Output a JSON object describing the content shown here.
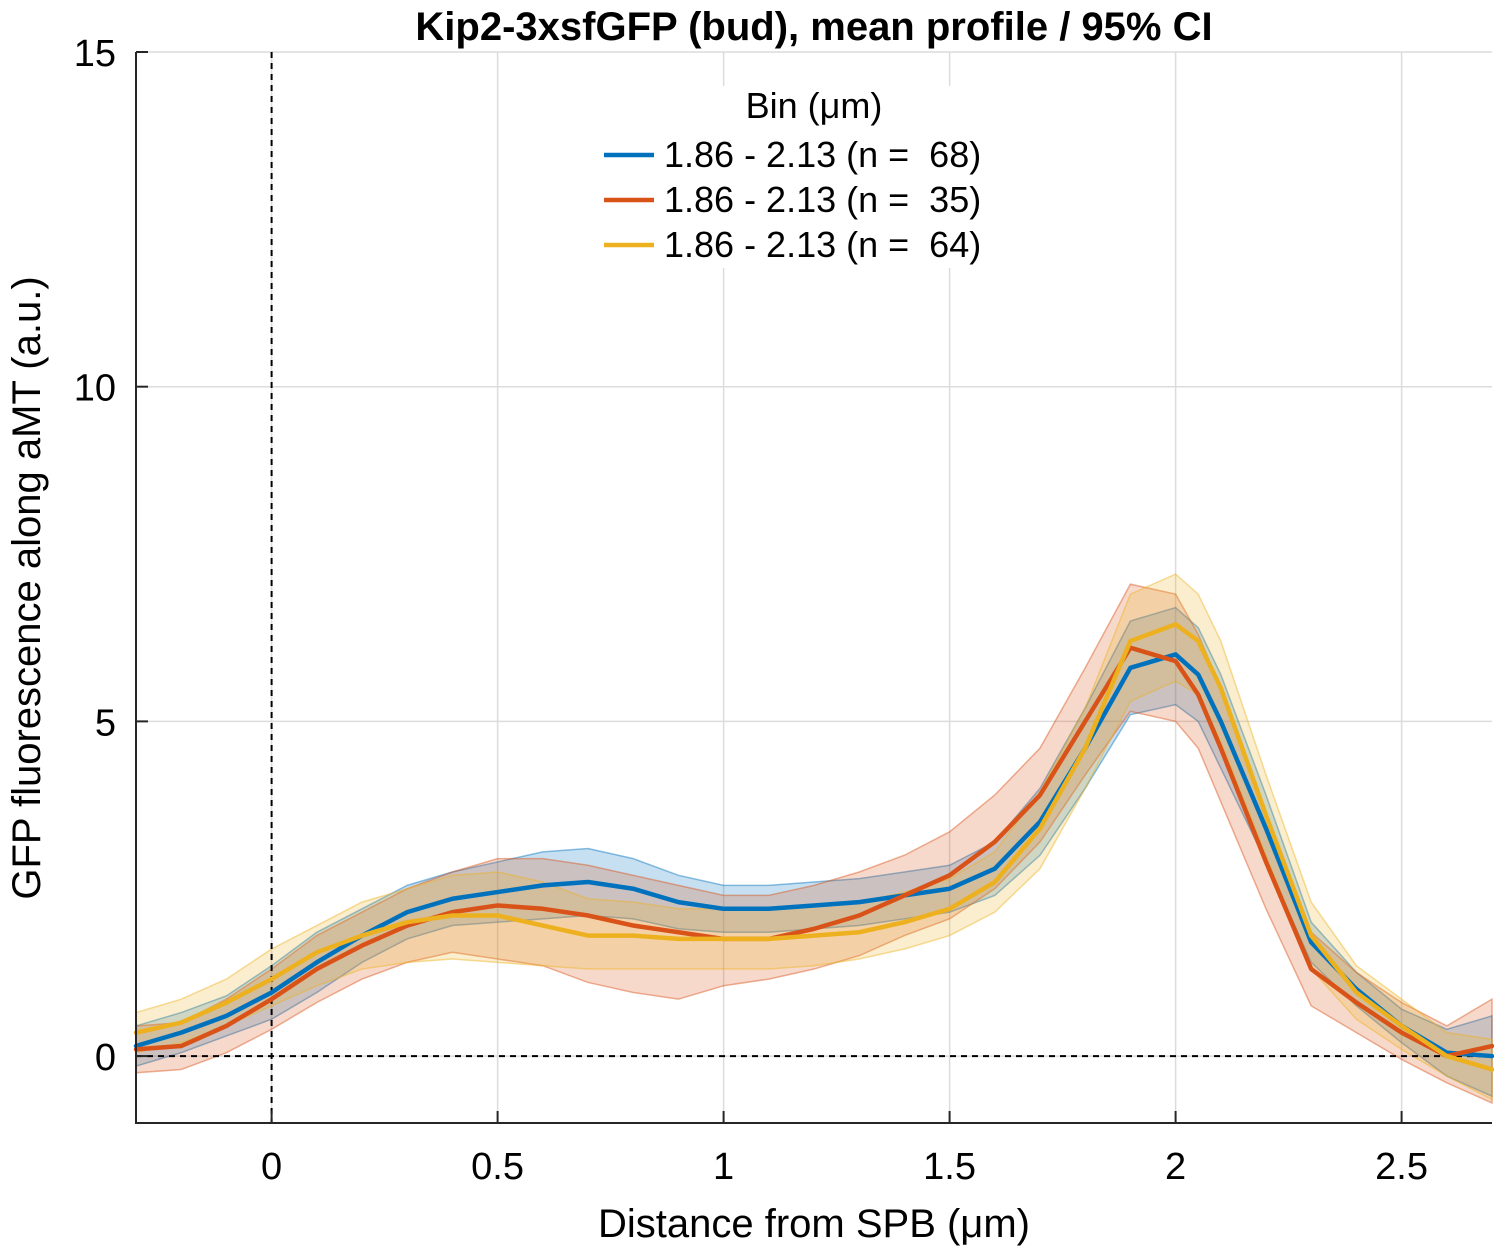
{
  "chart_data": {
    "type": "line",
    "title": "Kip2-3xsfGFP (bud), mean profile / 95% CI",
    "xlabel": "Distance from SPB (μm)",
    "ylabel": "GFP fluorescence along aMT (a.u.)",
    "xlim": [
      -0.3,
      2.7
    ],
    "ylim": [
      -1,
      15
    ],
    "xticks": [
      0,
      0.5,
      1,
      1.5,
      2,
      2.5
    ],
    "xtick_labels": [
      "0",
      "0.5",
      "1",
      "1.5",
      "2",
      "2.5"
    ],
    "yticks": [
      0,
      5,
      10,
      15
    ],
    "ytick_labels": [
      "0",
      "5",
      "10",
      "15"
    ],
    "grid": true,
    "reference_lines": {
      "x": 0,
      "y": 0,
      "style": "dashed"
    },
    "legend": {
      "title": "Bin (μm)",
      "placement": "top-center",
      "entries": [
        "1.86 - 2.13 (n =  68)",
        "1.86 - 2.13 (n =  35)",
        "1.86 - 2.13 (n =  64)"
      ]
    },
    "x": [
      -0.3,
      -0.2,
      -0.1,
      0,
      0.1,
      0.2,
      0.3,
      0.4,
      0.5,
      0.6,
      0.7,
      0.8,
      0.9,
      1.0,
      1.1,
      1.2,
      1.3,
      1.4,
      1.5,
      1.6,
      1.7,
      1.8,
      1.9,
      2.0,
      2.05,
      2.1,
      2.2,
      2.3,
      2.4,
      2.5,
      2.6,
      2.7
    ],
    "series": [
      {
        "name": "1.86 - 2.13 (n =  68)",
        "color": "#0072BD",
        "values": [
          0.15,
          0.35,
          0.6,
          0.95,
          1.4,
          1.8,
          2.15,
          2.35,
          2.45,
          2.55,
          2.6,
          2.5,
          2.3,
          2.2,
          2.2,
          2.25,
          2.3,
          2.4,
          2.5,
          2.8,
          3.5,
          4.6,
          5.8,
          6.0,
          5.7,
          5.0,
          3.4,
          1.7,
          1.0,
          0.45,
          0.05,
          0.0
        ],
        "ci_lower": [
          -0.15,
          0.05,
          0.3,
          0.55,
          0.95,
          1.4,
          1.75,
          1.95,
          2.0,
          2.05,
          2.1,
          2.05,
          1.9,
          1.85,
          1.85,
          1.9,
          1.95,
          2.05,
          2.15,
          2.4,
          3.0,
          4.0,
          5.1,
          5.25,
          5.0,
          4.3,
          2.9,
          1.4,
          0.75,
          0.2,
          -0.3,
          -0.6
        ],
        "ci_upper": [
          0.45,
          0.65,
          0.9,
          1.35,
          1.85,
          2.2,
          2.55,
          2.75,
          2.9,
          3.05,
          3.1,
          2.95,
          2.7,
          2.55,
          2.55,
          2.6,
          2.65,
          2.75,
          2.85,
          3.2,
          4.0,
          5.2,
          6.5,
          6.7,
          6.4,
          5.7,
          3.9,
          2.0,
          1.25,
          0.7,
          0.4,
          0.6
        ]
      },
      {
        "name": "1.86 - 2.13 (n =  35)",
        "color": "#D95319",
        "values": [
          0.1,
          0.15,
          0.45,
          0.85,
          1.3,
          1.65,
          1.95,
          2.15,
          2.25,
          2.2,
          2.1,
          1.95,
          1.85,
          1.75,
          1.75,
          1.9,
          2.1,
          2.4,
          2.7,
          3.2,
          3.9,
          5.0,
          6.1,
          5.9,
          5.4,
          4.6,
          2.9,
          1.3,
          0.8,
          0.35,
          0.0,
          0.15
        ],
        "ci_lower": [
          -0.25,
          -0.2,
          0.05,
          0.4,
          0.8,
          1.15,
          1.4,
          1.55,
          1.45,
          1.35,
          1.1,
          0.95,
          0.85,
          1.05,
          1.15,
          1.3,
          1.5,
          1.8,
          2.05,
          2.5,
          3.2,
          4.2,
          5.15,
          5.0,
          4.6,
          3.8,
          2.2,
          0.75,
          0.35,
          -0.05,
          -0.4,
          -0.7
        ],
        "ci_upper": [
          0.45,
          0.5,
          0.85,
          1.3,
          1.8,
          2.15,
          2.5,
          2.75,
          2.95,
          2.95,
          2.85,
          2.7,
          2.55,
          2.4,
          2.4,
          2.55,
          2.75,
          3.0,
          3.35,
          3.9,
          4.6,
          5.8,
          7.05,
          6.9,
          6.3,
          5.5,
          3.6,
          1.85,
          1.25,
          0.8,
          0.45,
          0.85
        ]
      },
      {
        "name": "1.86 - 2.13 (n =  64)",
        "color": "#EDB120",
        "values": [
          0.35,
          0.5,
          0.8,
          1.15,
          1.55,
          1.8,
          2.0,
          2.1,
          2.1,
          1.95,
          1.8,
          1.8,
          1.75,
          1.75,
          1.75,
          1.8,
          1.85,
          2.0,
          2.2,
          2.6,
          3.4,
          4.6,
          6.2,
          6.45,
          6.2,
          5.5,
          3.6,
          1.8,
          0.95,
          0.45,
          0.0,
          -0.2
        ],
        "ci_lower": [
          0.05,
          0.2,
          0.45,
          0.75,
          1.05,
          1.3,
          1.4,
          1.45,
          1.4,
          1.35,
          1.3,
          1.3,
          1.3,
          1.3,
          1.3,
          1.35,
          1.45,
          1.6,
          1.8,
          2.15,
          2.8,
          4.0,
          5.3,
          5.6,
          5.4,
          4.7,
          3.0,
          1.3,
          0.55,
          0.1,
          -0.3,
          -0.65
        ],
        "ci_upper": [
          0.65,
          0.85,
          1.15,
          1.6,
          1.95,
          2.3,
          2.5,
          2.7,
          2.75,
          2.6,
          2.35,
          2.3,
          2.2,
          2.2,
          2.2,
          2.25,
          2.3,
          2.45,
          2.65,
          3.05,
          3.95,
          5.2,
          6.9,
          7.2,
          6.9,
          6.2,
          4.2,
          2.3,
          1.35,
          0.85,
          0.35,
          0.25
        ]
      }
    ]
  }
}
